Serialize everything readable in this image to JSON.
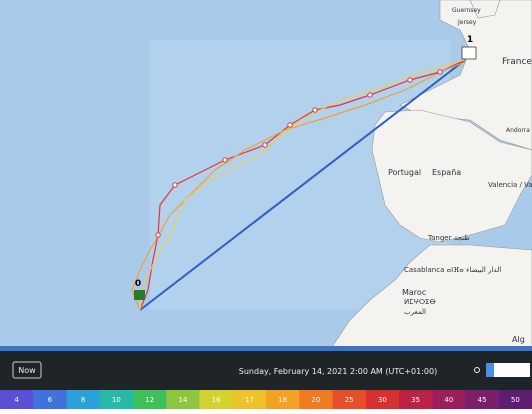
{
  "map": {
    "labels": [
      "Guernsey",
      "Jersey",
      "France",
      "Andorra",
      "Portugal",
      "España",
      "Valencia / València",
      "Tanger طنجة",
      "Casablanca ⴰⵏⴼⴰ الدار البيضاء",
      "Maroc",
      "ⵍⵎⵖⵔⵉⴱ",
      "المغرب",
      "Alg"
    ],
    "start_marker": "0",
    "finish_marker": "1"
  },
  "controls": {
    "now_button": "Now",
    "date": "Sunday, February 14, 2021 2:00 AM (UTC+01:00)"
  },
  "wind_scale": [
    {
      "value": 4,
      "color": "#5b4fd6"
    },
    {
      "value": 6,
      "color": "#3f72dd"
    },
    {
      "value": 8,
      "color": "#2ca0d8"
    },
    {
      "value": 10,
      "color": "#27b8a8"
    },
    {
      "value": 12,
      "color": "#3fbf5a"
    },
    {
      "value": 14,
      "color": "#8cc63f"
    },
    {
      "value": 16,
      "color": "#d4d22e"
    },
    {
      "value": 17,
      "color": "#f0c22a"
    },
    {
      "value": 18,
      "color": "#f3a226"
    },
    {
      "value": 20,
      "color": "#ee7a22"
    },
    {
      "value": 25,
      "color": "#e5502a"
    },
    {
      "value": 30,
      "color": "#d6302f"
    },
    {
      "value": 35,
      "color": "#bb2245"
    },
    {
      "value": 40,
      "color": "#9c1f5c"
    },
    {
      "value": 45,
      "color": "#7c1f6a"
    },
    {
      "value": 50,
      "color": "#5e1d6e"
    }
  ]
}
